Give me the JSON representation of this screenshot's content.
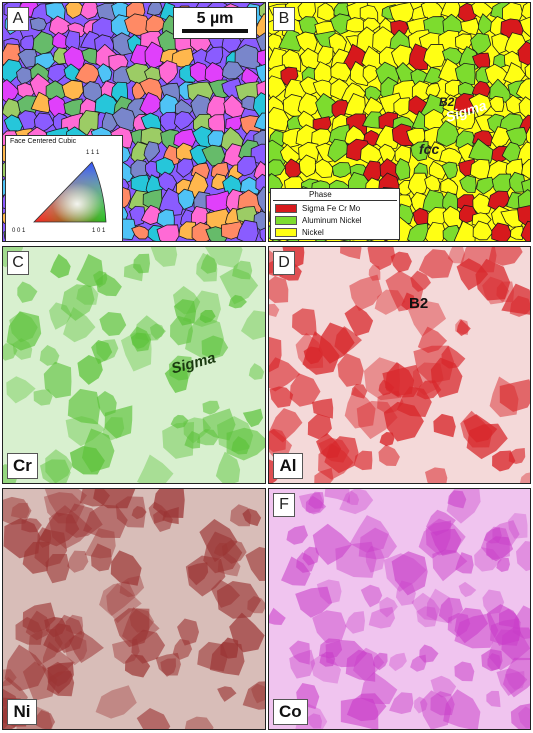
{
  "panels": [
    {
      "letter": "A"
    },
    {
      "letter": "B"
    },
    {
      "letter": "C"
    },
    {
      "letter": "D"
    },
    {
      "letter": "E"
    },
    {
      "letter": "F"
    }
  ],
  "scale_bar": {
    "label": "5 µm"
  },
  "ipf_key": {
    "title": "Face Centered Cubic",
    "label_top": "1 1 1",
    "label_left": "0 0 1",
    "label_right": "1 0 1"
  },
  "phase_legend": {
    "title": "Phase",
    "items": [
      {
        "label": "Sigma Fe Cr Mo",
        "color": "#d7191c"
      },
      {
        "label": "Aluminum Nickel",
        "color": "#7ddc2e"
      },
      {
        "label": "Nickel",
        "color": "#ffff14"
      }
    ]
  },
  "annotations": {
    "b2": "B2",
    "sigma_b": "Sigma",
    "fcc": "fcc",
    "sigma_c": "Sigma",
    "b2_d": "B2"
  },
  "elements": {
    "c": "Cr",
    "d": "Al",
    "e": "Ni",
    "f": "Co"
  },
  "colors": {
    "cr_map": "#5cc23a",
    "cr_bg": "#d8f0cf",
    "al_map": "#d8272b",
    "al_bg": "#f4d9d9",
    "ni_map": "#9b3534",
    "ni_bg": "#d8bdb8",
    "co_map": "#c83cc8",
    "co_bg": "#f0c4ef"
  }
}
